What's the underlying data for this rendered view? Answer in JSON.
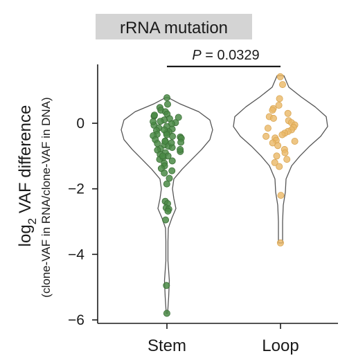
{
  "chart_data": {
    "type": "violin",
    "title": "rRNA mutation",
    "ylabel_main": "log",
    "ylabel_sub": "2",
    "ylabel_rest": " VAF difference",
    "ylabel_line2": "(clone-VAF in RNA/clone-VAF in DNA)",
    "categories": [
      "Stem",
      "Loop"
    ],
    "ylim": [
      -6.2,
      1.8
    ],
    "yticks": [
      0,
      -2,
      -4,
      -6
    ],
    "ytick_labels": [
      "0",
      "−2",
      "−4",
      "−6"
    ],
    "annotation": {
      "label_italic": "P",
      "label_rest": " = 0.0329",
      "from": "Stem",
      "to": "Loop"
    },
    "colors": {
      "Stem": "#4a8a45",
      "Loop": "#eab866",
      "title_bg": "#d4d4d4",
      "violin_stroke": "#555555"
    },
    "series": [
      {
        "name": "Stem",
        "values": [
          0.78,
          0.58,
          0.48,
          0.4,
          0.35,
          0.28,
          0.22,
          0.18,
          0.14,
          0.1,
          0.06,
          0.02,
          -0.02,
          -0.06,
          -0.1,
          -0.14,
          -0.18,
          -0.22,
          -0.26,
          -0.3,
          -0.34,
          -0.38,
          -0.42,
          -0.46,
          -0.5,
          -0.54,
          -0.58,
          -0.62,
          -0.66,
          -0.7,
          -0.74,
          -0.78,
          -0.82,
          -0.86,
          -0.9,
          -0.95,
          -1.0,
          -1.05,
          -1.1,
          -1.15,
          -1.22,
          -1.3,
          -1.38,
          -1.45,
          -1.52,
          -1.68,
          -1.85,
          -2.38,
          -2.45,
          -2.58,
          -2.62,
          -2.68,
          -2.95,
          -4.95,
          -5.8,
          0.25,
          0.05,
          -0.2,
          -0.4,
          -0.6,
          -0.8,
          -1.0,
          -0.55,
          -0.35
        ],
        "violin": [
          [
            0.78,
            0.02
          ],
          [
            0.6,
            0.18
          ],
          [
            0.35,
            0.46
          ],
          [
            0.1,
            0.62
          ],
          [
            -0.2,
            0.66
          ],
          [
            -0.5,
            0.62
          ],
          [
            -0.8,
            0.5
          ],
          [
            -1.1,
            0.36
          ],
          [
            -1.4,
            0.22
          ],
          [
            -1.7,
            0.1
          ],
          [
            -2.0,
            0.08
          ],
          [
            -2.3,
            0.1
          ],
          [
            -2.6,
            0.13
          ],
          [
            -2.9,
            0.07
          ],
          [
            -3.2,
            0.02
          ],
          [
            -3.6,
            0.015
          ],
          [
            -4.2,
            0.015
          ],
          [
            -4.8,
            0.035
          ],
          [
            -5.3,
            0.025
          ],
          [
            -5.8,
            0.01
          ]
        ]
      },
      {
        "name": "Loop",
        "values": [
          1.42,
          1.18,
          0.75,
          0.55,
          0.45,
          0.4,
          0.3,
          0.2,
          0.15,
          0.08,
          0.02,
          -0.05,
          -0.12,
          -0.2,
          -0.25,
          -0.3,
          -0.35,
          -0.4,
          -0.45,
          -0.52,
          -0.6,
          -0.68,
          -0.8,
          -0.9,
          -1.0,
          -1.1,
          -1.2,
          -1.32,
          -2.2,
          -3.65,
          -0.15,
          -0.55
        ],
        "violin": [
          [
            1.45,
            0.05
          ],
          [
            1.1,
            0.12
          ],
          [
            0.8,
            0.3
          ],
          [
            0.5,
            0.5
          ],
          [
            0.2,
            0.66
          ],
          [
            -0.1,
            0.68
          ],
          [
            -0.4,
            0.58
          ],
          [
            -0.7,
            0.42
          ],
          [
            -1.0,
            0.28
          ],
          [
            -1.3,
            0.16
          ],
          [
            -1.7,
            0.08
          ],
          [
            -2.1,
            0.07
          ],
          [
            -2.5,
            0.04
          ],
          [
            -3.0,
            0.03
          ],
          [
            -3.4,
            0.03
          ],
          [
            -3.65,
            0.03
          ]
        ]
      }
    ]
  }
}
